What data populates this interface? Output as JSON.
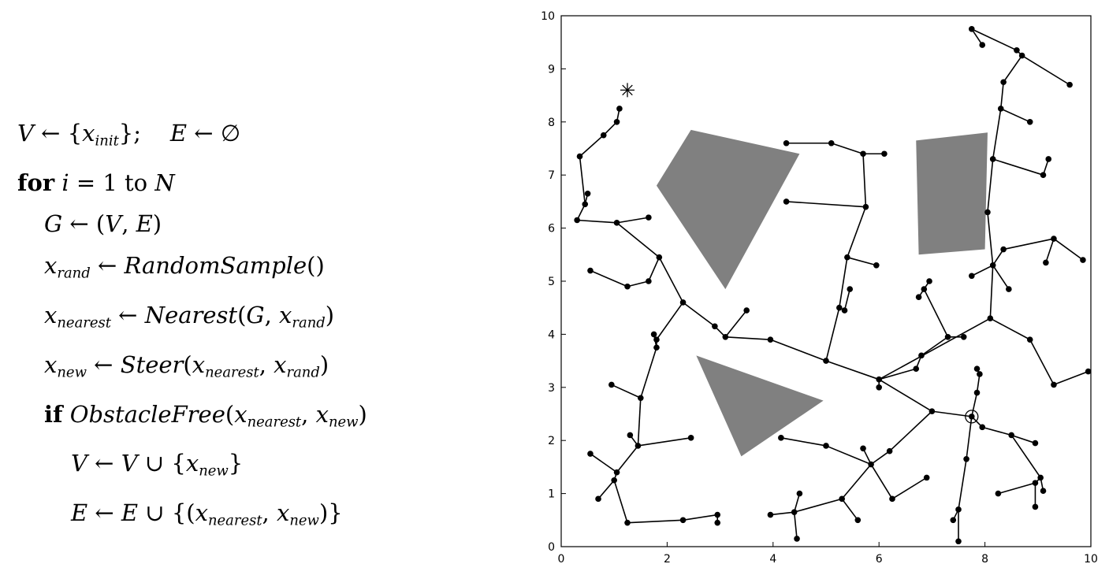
{
  "algorithm": {
    "l1_v": "V",
    "l1_arrow": " ← {",
    "l1_x": "x",
    "l1_init": "init",
    "l1_mid": "};    ",
    "l1_e": "E",
    "l1_empty": " ← ∅",
    "l2_for": "for",
    "l2_i": " i",
    "l2_eq": " = 1 ",
    "l2_to": "to",
    "l2_n": " N",
    "l3_g": "G",
    "l3_rest": " ← (",
    "l3_v": "V",
    "l3_c": ", ",
    "l3_e": "E",
    "l3_close": ")",
    "l4_x": "x",
    "l4_sub": "rand",
    "l4_arrow": " ← ",
    "l4_fn": "RandomSample",
    "l4_tail": "()",
    "l5_x": "x",
    "l5_sub": "nearest",
    "l5_arrow": " ← ",
    "l5_fn": "Nearest",
    "l5_open": "(",
    "l5_g": "G",
    "l5_c": ", ",
    "l5_x2": "x",
    "l5_sub2": "rand",
    "l5_close": ")",
    "l6_x": "x",
    "l6_sub": "new",
    "l6_arrow": " ← ",
    "l6_fn": "Steer",
    "l6_open": "(",
    "l6_x1": "x",
    "l6_sub1": "nearest",
    "l6_c": ", ",
    "l6_x2": "x",
    "l6_sub2": "rand",
    "l6_close": ")",
    "l7_if": "if",
    "l7_fn": " ObstacleFree",
    "l7_open": "(",
    "l7_x1": "x",
    "l7_sub1": "nearest",
    "l7_c": ", ",
    "l7_x2": "x",
    "l7_sub2": "new",
    "l7_close": ")",
    "l8_v": "V",
    "l8_mid": " ← ",
    "l8_v2": "V",
    "l8_cup": " ∪ {",
    "l8_x": "x",
    "l8_sub": "new",
    "l8_close": "}",
    "l9_e": "E",
    "l9_mid": " ← ",
    "l9_e2": "E",
    "l9_cup": " ∪ {(",
    "l9_x1": "x",
    "l9_sub1": "nearest",
    "l9_c": ", ",
    "l9_x2": "x",
    "l9_sub2": "new",
    "l9_close": ")}"
  },
  "plot": {
    "x_ticks": [
      "0",
      "2",
      "4",
      "6",
      "8",
      "10"
    ],
    "y_ticks": [
      "0",
      "1",
      "2",
      "3",
      "4",
      "5",
      "6",
      "7",
      "8",
      "9",
      "10"
    ],
    "xlim": [
      0,
      10
    ],
    "ylim": [
      0,
      10
    ],
    "obstacle_color": "#808080",
    "obstacles": [
      [
        [
          1.8,
          6.8
        ],
        [
          2.45,
          7.85
        ],
        [
          4.5,
          7.4
        ],
        [
          3.1,
          4.85
        ]
      ],
      [
        [
          6.7,
          7.65
        ],
        [
          8.05,
          7.8
        ],
        [
          8.0,
          5.6
        ],
        [
          6.75,
          5.5
        ]
      ],
      [
        [
          2.55,
          3.6
        ],
        [
          4.95,
          2.75
        ],
        [
          3.4,
          1.7
        ]
      ]
    ],
    "start_marker": "○",
    "start": [
      7.75,
      2.45
    ],
    "goal_marker": "*",
    "goal": [
      1.25,
      8.6
    ],
    "edges": [
      [
        [
          7.75,
          2.45
        ],
        [
          7.0,
          2.55
        ]
      ],
      [
        [
          7.0,
          2.55
        ],
        [
          6.0,
          3.15
        ]
      ],
      [
        [
          6.0,
          3.15
        ],
        [
          5.0,
          3.5
        ]
      ],
      [
        [
          5.0,
          3.5
        ],
        [
          3.95,
          3.9
        ]
      ],
      [
        [
          3.95,
          3.9
        ],
        [
          3.1,
          3.95
        ]
      ],
      [
        [
          3.1,
          3.95
        ],
        [
          2.9,
          4.15
        ]
      ],
      [
        [
          2.9,
          4.15
        ],
        [
          2.3,
          4.6
        ]
      ],
      [
        [
          2.3,
          4.6
        ],
        [
          1.85,
          5.45
        ]
      ],
      [
        [
          1.85,
          5.45
        ],
        [
          1.05,
          6.1
        ]
      ],
      [
        [
          1.05,
          6.1
        ],
        [
          0.3,
          6.15
        ]
      ],
      [
        [
          1.05,
          6.1
        ],
        [
          1.65,
          6.2
        ]
      ],
      [
        [
          0.3,
          6.15
        ],
        [
          0.45,
          6.45
        ]
      ],
      [
        [
          0.45,
          6.45
        ],
        [
          0.5,
          6.65
        ]
      ],
      [
        [
          0.45,
          6.45
        ],
        [
          0.35,
          7.35
        ]
      ],
      [
        [
          0.35,
          7.35
        ],
        [
          0.8,
          7.75
        ]
      ],
      [
        [
          0.8,
          7.75
        ],
        [
          1.05,
          8.0
        ]
      ],
      [
        [
          1.05,
          8.0
        ],
        [
          1.1,
          8.25
        ]
      ],
      [
        [
          1.85,
          5.45
        ],
        [
          1.65,
          5.0
        ]
      ],
      [
        [
          1.65,
          5.0
        ],
        [
          1.25,
          4.9
        ]
      ],
      [
        [
          1.25,
          4.9
        ],
        [
          0.55,
          5.2
        ]
      ],
      [
        [
          2.3,
          4.6
        ],
        [
          1.8,
          3.9
        ]
      ],
      [
        [
          1.8,
          3.9
        ],
        [
          1.8,
          3.75
        ]
      ],
      [
        [
          1.8,
          3.75
        ],
        [
          1.75,
          4.0
        ]
      ],
      [
        [
          1.8,
          3.75
        ],
        [
          1.5,
          2.8
        ]
      ],
      [
        [
          1.5,
          2.8
        ],
        [
          0.95,
          3.05
        ]
      ],
      [
        [
          1.5,
          2.8
        ],
        [
          1.45,
          1.9
        ]
      ],
      [
        [
          1.45,
          1.9
        ],
        [
          1.3,
          2.1
        ]
      ],
      [
        [
          1.45,
          1.9
        ],
        [
          2.45,
          2.05
        ]
      ],
      [
        [
          1.45,
          1.9
        ],
        [
          1.05,
          1.4
        ]
      ],
      [
        [
          1.05,
          1.4
        ],
        [
          0.55,
          1.75
        ]
      ],
      [
        [
          1.05,
          1.4
        ],
        [
          1.0,
          1.25
        ]
      ],
      [
        [
          1.0,
          1.25
        ],
        [
          0.7,
          0.9
        ]
      ],
      [
        [
          1.0,
          1.25
        ],
        [
          1.25,
          0.45
        ]
      ],
      [
        [
          1.25,
          0.45
        ],
        [
          2.3,
          0.5
        ]
      ],
      [
        [
          2.3,
          0.5
        ],
        [
          2.95,
          0.6
        ]
      ],
      [
        [
          2.95,
          0.6
        ],
        [
          2.95,
          0.45
        ]
      ],
      [
        [
          3.1,
          3.95
        ],
        [
          3.5,
          4.45
        ]
      ],
      [
        [
          5.0,
          3.5
        ],
        [
          5.25,
          4.5
        ]
      ],
      [
        [
          5.25,
          4.5
        ],
        [
          5.35,
          4.45
        ]
      ],
      [
        [
          5.35,
          4.45
        ],
        [
          5.45,
          4.85
        ]
      ],
      [
        [
          5.25,
          4.5
        ],
        [
          5.4,
          5.45
        ]
      ],
      [
        [
          5.4,
          5.45
        ],
        [
          5.95,
          5.3
        ]
      ],
      [
        [
          5.4,
          5.45
        ],
        [
          5.75,
          6.4
        ]
      ],
      [
        [
          5.75,
          6.4
        ],
        [
          4.25,
          6.5
        ]
      ],
      [
        [
          5.75,
          6.4
        ],
        [
          5.7,
          7.4
        ]
      ],
      [
        [
          5.7,
          7.4
        ],
        [
          6.1,
          7.4
        ]
      ],
      [
        [
          5.7,
          7.4
        ],
        [
          5.1,
          7.6
        ]
      ],
      [
        [
          5.1,
          7.6
        ],
        [
          4.25,
          7.6
        ]
      ],
      [
        [
          6.0,
          3.15
        ],
        [
          6.0,
          3.0
        ]
      ],
      [
        [
          6.0,
          3.15
        ],
        [
          6.7,
          3.35
        ]
      ],
      [
        [
          6.7,
          3.35
        ],
        [
          6.8,
          3.6
        ]
      ],
      [
        [
          6.8,
          3.6
        ],
        [
          7.3,
          3.95
        ]
      ],
      [
        [
          7.3,
          3.95
        ],
        [
          7.6,
          3.95
        ]
      ],
      [
        [
          7.3,
          3.95
        ],
        [
          6.85,
          4.85
        ]
      ],
      [
        [
          6.85,
          4.85
        ],
        [
          6.95,
          5.0
        ]
      ],
      [
        [
          6.85,
          4.85
        ],
        [
          6.75,
          4.7
        ]
      ],
      [
        [
          6.0,
          3.15
        ],
        [
          8.1,
          4.3
        ]
      ],
      [
        [
          8.1,
          4.3
        ],
        [
          8.85,
          3.9
        ]
      ],
      [
        [
          8.85,
          3.9
        ],
        [
          9.3,
          3.05
        ]
      ],
      [
        [
          9.3,
          3.05
        ],
        [
          9.95,
          3.3
        ]
      ],
      [
        [
          8.1,
          4.3
        ],
        [
          8.15,
          5.3
        ]
      ],
      [
        [
          8.15,
          5.3
        ],
        [
          7.75,
          5.1
        ]
      ],
      [
        [
          8.15,
          5.3
        ],
        [
          8.45,
          4.85
        ]
      ],
      [
        [
          8.15,
          5.3
        ],
        [
          8.35,
          5.6
        ]
      ],
      [
        [
          8.35,
          5.6
        ],
        [
          9.3,
          5.8
        ]
      ],
      [
        [
          9.3,
          5.8
        ],
        [
          9.85,
          5.4
        ]
      ],
      [
        [
          9.3,
          5.8
        ],
        [
          9.15,
          5.35
        ]
      ],
      [
        [
          8.15,
          5.3
        ],
        [
          8.05,
          6.3
        ]
      ],
      [
        [
          8.05,
          6.3
        ],
        [
          8.15,
          7.3
        ]
      ],
      [
        [
          8.15,
          7.3
        ],
        [
          9.1,
          7.0
        ]
      ],
      [
        [
          9.1,
          7.0
        ],
        [
          9.2,
          7.3
        ]
      ],
      [
        [
          8.15,
          7.3
        ],
        [
          8.3,
          8.25
        ]
      ],
      [
        [
          8.3,
          8.25
        ],
        [
          8.85,
          8.0
        ]
      ],
      [
        [
          8.3,
          8.25
        ],
        [
          8.35,
          8.75
        ]
      ],
      [
        [
          8.35,
          8.75
        ],
        [
          8.7,
          9.25
        ]
      ],
      [
        [
          8.7,
          9.25
        ],
        [
          9.6,
          8.7
        ]
      ],
      [
        [
          8.7,
          9.25
        ],
        [
          8.6,
          9.35
        ]
      ],
      [
        [
          8.6,
          9.35
        ],
        [
          7.75,
          9.75
        ]
      ],
      [
        [
          7.75,
          9.75
        ],
        [
          7.95,
          9.45
        ]
      ],
      [
        [
          7.75,
          2.45
        ],
        [
          7.85,
          2.9
        ]
      ],
      [
        [
          7.85,
          2.9
        ],
        [
          7.9,
          3.25
        ]
      ],
      [
        [
          7.9,
          3.25
        ],
        [
          7.85,
          3.35
        ]
      ],
      [
        [
          7.75,
          2.45
        ],
        [
          7.65,
          1.65
        ]
      ],
      [
        [
          7.65,
          1.65
        ],
        [
          7.5,
          0.7
        ]
      ],
      [
        [
          7.5,
          0.7
        ],
        [
          7.4,
          0.5
        ]
      ],
      [
        [
          7.5,
          0.7
        ],
        [
          7.5,
          0.1
        ]
      ],
      [
        [
          7.75,
          2.45
        ],
        [
          7.95,
          2.25
        ]
      ],
      [
        [
          7.95,
          2.25
        ],
        [
          8.5,
          2.1
        ]
      ],
      [
        [
          8.5,
          2.1
        ],
        [
          8.95,
          1.95
        ]
      ],
      [
        [
          8.5,
          2.1
        ],
        [
          9.05,
          1.3
        ]
      ],
      [
        [
          9.05,
          1.3
        ],
        [
          9.1,
          1.05
        ]
      ],
      [
        [
          9.05,
          1.3
        ],
        [
          8.95,
          1.2
        ]
      ],
      [
        [
          8.95,
          1.2
        ],
        [
          8.25,
          1.0
        ]
      ],
      [
        [
          8.95,
          1.2
        ],
        [
          8.95,
          0.75
        ]
      ],
      [
        [
          7.0,
          2.55
        ],
        [
          6.2,
          1.8
        ]
      ],
      [
        [
          6.2,
          1.8
        ],
        [
          5.85,
          1.55
        ]
      ],
      [
        [
          5.85,
          1.55
        ],
        [
          5.7,
          1.85
        ]
      ],
      [
        [
          5.85,
          1.55
        ],
        [
          5.0,
          1.9
        ]
      ],
      [
        [
          5.0,
          1.9
        ],
        [
          4.15,
          2.05
        ]
      ],
      [
        [
          5.85,
          1.55
        ],
        [
          5.3,
          0.9
        ]
      ],
      [
        [
          5.3,
          0.9
        ],
        [
          5.6,
          0.5
        ]
      ],
      [
        [
          5.3,
          0.9
        ],
        [
          4.4,
          0.65
        ]
      ],
      [
        [
          4.4,
          0.65
        ],
        [
          4.5,
          1.0
        ]
      ],
      [
        [
          4.4,
          0.65
        ],
        [
          4.45,
          0.15
        ]
      ],
      [
        [
          4.4,
          0.65
        ],
        [
          3.95,
          0.6
        ]
      ],
      [
        [
          5.85,
          1.55
        ],
        [
          6.25,
          0.9
        ]
      ],
      [
        [
          6.25,
          0.9
        ],
        [
          6.9,
          1.3
        ]
      ]
    ]
  }
}
